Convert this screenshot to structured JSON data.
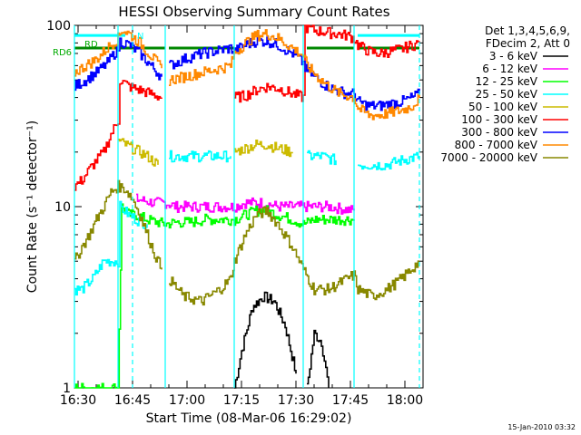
{
  "chart_data": {
    "type": "line",
    "title": "HESSI Observing Summary Count Rates",
    "xlabel": "Start Time (08-Mar-06 16:29:02)",
    "ylabel": "Count Rate (s⁻¹ detector⁻¹)",
    "x_ticks": [
      "16:30",
      "16:45",
      "17:00",
      "17:15",
      "17:30",
      "17:45",
      "18:00"
    ],
    "y_ticks": [
      "1",
      "10",
      "100"
    ],
    "y_scale": "log",
    "ylim": [
      1,
      100
    ],
    "xlim_minutes": [
      0,
      96
    ],
    "legend": {
      "header": [
        "Det 1,3,4,5,6,9,",
        "FDecim 2, Att 0"
      ],
      "placement": "right"
    },
    "footer_date": "15-Jan-2010 03:32",
    "flags": [
      {
        "label": "RD6",
        "color": "#00aa00"
      },
      {
        "label": "RD",
        "color": "#00aa00"
      },
      {
        "label": "N",
        "color": "#00ffff"
      }
    ],
    "orbit_boundaries_solid": [
      0,
      12,
      25,
      44,
      63,
      77
    ],
    "orbit_boundaries_dashed": [
      16,
      95
    ],
    "series": [
      {
        "name": "3 - 6 keV",
        "color": "#000000",
        "points": [
          [
            0,
            null
          ],
          [
            4,
            null
          ],
          [
            12,
            null
          ],
          [
            24,
            null
          ],
          [
            44,
            1.0
          ],
          [
            46,
            1.6
          ],
          [
            49,
            2.8
          ],
          [
            52,
            3.2
          ],
          [
            55,
            3.0
          ],
          [
            58,
            2.2
          ],
          [
            61,
            1.2
          ],
          [
            63,
            null
          ],
          [
            64,
            1.0
          ],
          [
            66,
            2.0
          ],
          [
            68,
            1.8
          ],
          [
            70,
            1.0
          ],
          [
            77,
            null
          ]
        ]
      },
      {
        "name": "6 - 12 keV",
        "color": "#ff00ff",
        "points": [
          [
            0,
            null
          ],
          [
            16,
            null
          ],
          [
            17,
            11
          ],
          [
            22,
            10.5
          ],
          [
            25,
            10.5
          ],
          [
            28,
            10
          ],
          [
            35,
            10
          ],
          [
            40,
            10
          ],
          [
            44,
            10
          ],
          [
            47,
            10.5
          ],
          [
            52,
            10.5
          ],
          [
            56,
            10
          ],
          [
            60,
            10
          ],
          [
            63,
            10
          ],
          [
            66,
            10
          ],
          [
            70,
            10
          ],
          [
            77,
            9.5
          ]
        ]
      },
      {
        "name": "12 - 25 keV",
        "color": "#00ff00",
        "points": [
          [
            0,
            1.0
          ],
          [
            12,
            1.0
          ],
          [
            13,
            10
          ],
          [
            15,
            9
          ],
          [
            17,
            9
          ],
          [
            20,
            8.5
          ],
          [
            25,
            8
          ],
          [
            28,
            8.2
          ],
          [
            32,
            8.2
          ],
          [
            36,
            8.5
          ],
          [
            40,
            8.5
          ],
          [
            44,
            8.5
          ],
          [
            47,
            9
          ],
          [
            50,
            9.5
          ],
          [
            53,
            9.5
          ],
          [
            56,
            9
          ],
          [
            60,
            8.5
          ],
          [
            63,
            8
          ],
          [
            66,
            8.5
          ],
          [
            70,
            8.5
          ],
          [
            77,
            8.5
          ]
        ]
      },
      {
        "name": "25 - 50 keV",
        "color": "#00ffff",
        "points": [
          [
            0,
            3.5
          ],
          [
            2,
            3.5
          ],
          [
            5,
            4
          ],
          [
            8,
            5
          ],
          [
            12,
            5
          ],
          [
            12.5,
            10
          ],
          [
            15,
            9
          ],
          [
            17,
            8.5
          ],
          [
            20,
            8
          ],
          [
            25,
            null
          ],
          [
            26,
            19
          ],
          [
            30,
            19
          ],
          [
            35,
            19
          ],
          [
            40,
            19
          ],
          [
            43,
            19
          ],
          [
            44,
            null
          ],
          [
            64,
            19
          ],
          [
            68,
            19
          ],
          [
            72,
            18
          ],
          [
            77,
            null
          ],
          [
            78,
            17
          ],
          [
            82,
            17
          ],
          [
            86,
            17
          ],
          [
            90,
            18
          ],
          [
            95,
            19
          ]
        ]
      },
      {
        "name": "50 - 100 keV",
        "color": "#ccbb00",
        "points": [
          [
            12,
            23
          ],
          [
            14,
            22
          ],
          [
            16,
            21
          ],
          [
            18,
            20
          ],
          [
            20,
            19
          ],
          [
            23,
            17
          ],
          [
            25,
            null
          ],
          [
            44,
            20
          ],
          [
            47,
            21
          ],
          [
            50,
            22
          ],
          [
            53,
            22
          ],
          [
            56,
            21
          ],
          [
            60,
            20
          ],
          [
            63,
            null
          ]
        ]
      },
      {
        "name": "100 - 300 keV",
        "color": "#ff0000",
        "points": [
          [
            0,
            13
          ],
          [
            2,
            14
          ],
          [
            4,
            16
          ],
          [
            6,
            18
          ],
          [
            8,
            20
          ],
          [
            10,
            25
          ],
          [
            12,
            30
          ],
          [
            12.5,
            50
          ],
          [
            15,
            46
          ],
          [
            18,
            44
          ],
          [
            21,
            42
          ],
          [
            24,
            40
          ],
          [
            25,
            null
          ],
          [
            44,
            40
          ],
          [
            47,
            41
          ],
          [
            50,
            44
          ],
          [
            53,
            46
          ],
          [
            56,
            45
          ],
          [
            60,
            42
          ],
          [
            63,
            40
          ],
          [
            63.5,
            98
          ],
          [
            66,
            94
          ],
          [
            69,
            92
          ],
          [
            72,
            90
          ],
          [
            75,
            88
          ],
          [
            77,
            85
          ],
          [
            78,
            78
          ],
          [
            81,
            72
          ],
          [
            84,
            70
          ],
          [
            87,
            72
          ],
          [
            90,
            74
          ],
          [
            93,
            78
          ],
          [
            95,
            80
          ]
        ]
      },
      {
        "name": "300 - 800 keV",
        "color": "#0000ff",
        "points": [
          [
            0,
            46
          ],
          [
            3,
            50
          ],
          [
            6,
            55
          ],
          [
            9,
            62
          ],
          [
            12,
            75
          ],
          [
            12.5,
            82
          ],
          [
            15,
            78
          ],
          [
            18,
            70
          ],
          [
            21,
            60
          ],
          [
            24,
            52
          ],
          [
            25,
            null
          ],
          [
            26,
            60
          ],
          [
            30,
            65
          ],
          [
            35,
            70
          ],
          [
            40,
            73
          ],
          [
            43,
            75
          ],
          [
            44,
            72
          ],
          [
            47,
            78
          ],
          [
            50,
            82
          ],
          [
            53,
            82
          ],
          [
            56,
            78
          ],
          [
            60,
            70
          ],
          [
            63,
            62
          ],
          [
            63.5,
            58
          ],
          [
            66,
            52
          ],
          [
            69,
            47
          ],
          [
            72,
            44
          ],
          [
            75,
            42
          ],
          [
            77,
            42
          ],
          [
            78,
            38
          ],
          [
            81,
            36
          ],
          [
            84,
            36
          ],
          [
            87,
            37
          ],
          [
            90,
            38
          ],
          [
            93,
            40
          ],
          [
            95,
            42
          ]
        ]
      },
      {
        "name": "800 - 7000 keV",
        "color": "#ff8800",
        "points": [
          [
            0,
            55
          ],
          [
            3,
            60
          ],
          [
            6,
            65
          ],
          [
            9,
            75
          ],
          [
            12,
            85
          ],
          [
            13,
            95
          ],
          [
            15,
            90
          ],
          [
            18,
            80
          ],
          [
            21,
            68
          ],
          [
            24,
            58
          ],
          [
            25,
            null
          ],
          [
            26,
            50
          ],
          [
            30,
            52
          ],
          [
            35,
            55
          ],
          [
            40,
            58
          ],
          [
            43,
            60
          ],
          [
            44,
            70
          ],
          [
            47,
            80
          ],
          [
            50,
            88
          ],
          [
            53,
            90
          ],
          [
            56,
            85
          ],
          [
            60,
            75
          ],
          [
            63,
            68
          ],
          [
            64,
            60
          ],
          [
            67,
            52
          ],
          [
            70,
            46
          ],
          [
            73,
            42
          ],
          [
            77,
            40
          ],
          [
            78,
            35
          ],
          [
            81,
            32
          ],
          [
            84,
            32
          ],
          [
            87,
            33
          ],
          [
            90,
            34
          ],
          [
            93,
            36
          ],
          [
            95,
            40
          ]
        ]
      },
      {
        "name": "7000 - 20000 keV",
        "color": "#888800",
        "points": [
          [
            0,
            5
          ],
          [
            2,
            6
          ],
          [
            4,
            7
          ],
          [
            6,
            8.5
          ],
          [
            8,
            10
          ],
          [
            10,
            12
          ],
          [
            12,
            13
          ],
          [
            14,
            12.5
          ],
          [
            16,
            11
          ],
          [
            18,
            9
          ],
          [
            20,
            7
          ],
          [
            22,
            5.5
          ],
          [
            24,
            4.5
          ],
          [
            25,
            null
          ],
          [
            26,
            4
          ],
          [
            30,
            3.2
          ],
          [
            35,
            3
          ],
          [
            40,
            3.5
          ],
          [
            43,
            4
          ],
          [
            44,
            5
          ],
          [
            47,
            7
          ],
          [
            50,
            9
          ],
          [
            53,
            9.5
          ],
          [
            56,
            8
          ],
          [
            60,
            6
          ],
          [
            63,
            4.5
          ],
          [
            66,
            3.5
          ],
          [
            70,
            3.5
          ],
          [
            75,
            4
          ],
          [
            77,
            4.2
          ],
          [
            78,
            3.5
          ],
          [
            82,
            3.2
          ],
          [
            86,
            3.5
          ],
          [
            90,
            4
          ],
          [
            95,
            5
          ]
        ]
      }
    ],
    "reference_lines": [
      {
        "label": "RD6",
        "color": "#008800",
        "value": 75,
        "segments": [
          [
            0,
            12
          ],
          [
            12.5,
            25
          ],
          [
            26,
            44
          ],
          [
            64,
            77
          ],
          [
            78,
            95
          ]
        ]
      },
      {
        "label": "N",
        "color": "#00ffff",
        "value": 88,
        "segments": [
          [
            0,
            14
          ],
          [
            78,
            95
          ]
        ]
      }
    ]
  }
}
